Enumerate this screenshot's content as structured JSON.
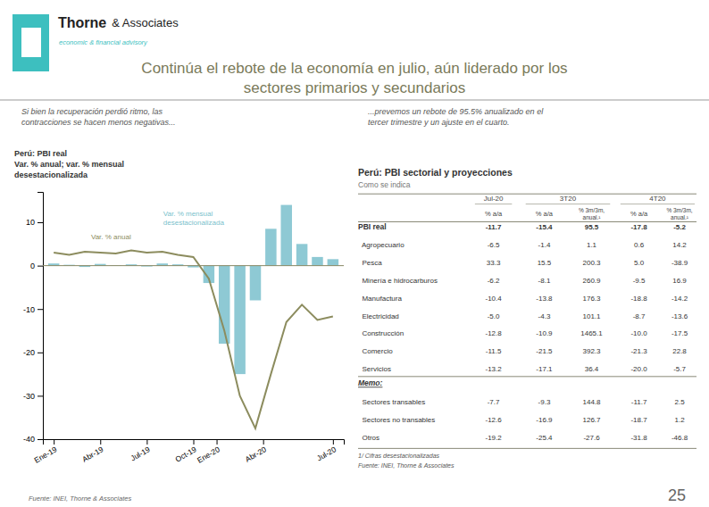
{
  "header": {
    "brand": "Thorne",
    "brand_suffix": "& Associates",
    "tagline": "economic & financial advisory",
    "logo_color": "#3dbfbf",
    "title": [
      "Continúa el rebote de la economía en julio, aún liderado por los",
      "sectores primarios y secundarios"
    ],
    "title_color": "#7a7a5a"
  },
  "subtitles": [
    "Si bien la recuperación perdió ritmo, las\ncontracciones se hacen menos negativas...",
    "...prevemos un rebote de 95.5% anualizado en el\ntercer trimestre y un ajuste en el cuarto."
  ],
  "chart_data": {
    "type": "bar",
    "title": "Perú: PBI real\nVar. % anual; var. % mensual\ndesestacionalizada",
    "x": [
      0,
      1,
      2,
      3,
      4,
      5,
      6,
      7,
      8,
      9,
      10,
      11,
      12,
      13,
      14,
      15,
      16,
      17,
      18
    ],
    "xlim": [
      -0.7,
      18.7
    ],
    "xticks": [
      {
        "value": 0,
        "label": "Ene-19"
      },
      {
        "value": 3,
        "label": "Abr-19"
      },
      {
        "value": 6,
        "label": "Jul-19"
      },
      {
        "value": 9,
        "label": "Oct-19"
      },
      {
        "value": 10.5,
        "label": "Ene-20"
      },
      {
        "value": 13.5,
        "label": "Abr-20"
      },
      {
        "value": 18,
        "label": "Jul-20"
      }
    ],
    "ylim": [
      -40,
      17
    ],
    "yticks": [
      -40,
      -30,
      -20,
      -10,
      0,
      10
    ],
    "grid": false,
    "series": [
      {
        "name": "Var. % mensual\ndesestacionalizada",
        "type": "bar",
        "color": "#7abfcc",
        "values": [
          0.5,
          0.2,
          -0.3,
          0.4,
          0.1,
          0.3,
          -0.2,
          0.5,
          0.3,
          -0.4,
          -4.0,
          -18.0,
          -25.0,
          -8.0,
          8.5,
          14.0,
          5.0,
          2.0,
          1.5
        ]
      },
      {
        "name": "Var. % anual",
        "type": "line",
        "color": "#8c8c5e",
        "values": [
          3.0,
          2.5,
          3.2,
          3.0,
          2.8,
          3.5,
          3.0,
          3.2,
          2.5,
          2.0,
          -3.0,
          -15.0,
          -30.0,
          -37.5,
          -25.0,
          -13.0,
          -9.0,
          -12.5,
          -11.7
        ]
      }
    ],
    "source": "Fuente: INEI, Thorne & Associates"
  },
  "table": {
    "title": "Perú: PBI sectorial y proyecciones",
    "subtitle": "Como se indica",
    "column_groups": [
      {
        "label": "Jul-20",
        "columns": [
          "% a/a"
        ]
      },
      {
        "label": "3T20",
        "columns": [
          "% a/a",
          "% 3m/3m,\nanual.¹"
        ]
      },
      {
        "label": "4T20",
        "columns": [
          "% a/a",
          "% 3m/3m,\nanual.¹"
        ]
      }
    ],
    "rows": [
      {
        "label": "PBI real",
        "cells": [
          "-11.7",
          "-15.4",
          "95.5",
          "-17.8",
          "-5.2"
        ],
        "bold": true
      },
      {
        "label": "  Agropecuario",
        "cells": [
          "-6.5",
          "-1.4",
          "1.1",
          "0.6",
          "14.2"
        ],
        "bold": false
      },
      {
        "label": "  Pesca",
        "cells": [
          "33.3",
          "15.5",
          "200.3",
          "5.0",
          "-38.9"
        ],
        "bold": false
      },
      {
        "label": "  Minería e hidrocarburos",
        "cells": [
          "-6.2",
          "-8.1",
          "260.9",
          "-9.5",
          "16.9"
        ],
        "bold": false
      },
      {
        "label": "  Manufactura",
        "cells": [
          "-10.4",
          "-13.8",
          "176.3",
          "-18.8",
          "-14.2"
        ],
        "bold": false
      },
      {
        "label": "  Electricidad",
        "cells": [
          "-5.0",
          "-4.3",
          "101.1",
          "-8.7",
          "-13.6"
        ],
        "bold": false
      },
      {
        "label": "  Construcción",
        "cells": [
          "-12.8",
          "-10.9",
          "1465.1",
          "-10.0",
          "-17.5"
        ],
        "bold": false
      },
      {
        "label": "  Comercio",
        "cells": [
          "-11.5",
          "-21.5",
          "392.3",
          "-21.3",
          "22.8"
        ],
        "bold": false
      },
      {
        "label": "  Servicios",
        "cells": [
          "-13.2",
          "-17.1",
          "36.4",
          "-20.0",
          "-5.7"
        ],
        "bold": false
      }
    ],
    "memo_label": "Memo:",
    "memo_rows": [
      {
        "label": "  Sectores transables",
        "cells": [
          "-7.7",
          "-9.3",
          "144.8",
          "-11.7",
          "2.5"
        ]
      },
      {
        "label": "  Sectores no transables",
        "cells": [
          "-12.6",
          "-16.9",
          "126.7",
          "-18.7",
          "1.2"
        ]
      },
      {
        "label": "  Otros",
        "cells": [
          "-19.2",
          "-25.4",
          "-27.6",
          "-31.8",
          "-46.8"
        ]
      }
    ],
    "footnote": "1/ Cifras desestacionalizadas",
    "source": "Fuente: INEI, Thorne & Associates"
  },
  "page_number": "25"
}
